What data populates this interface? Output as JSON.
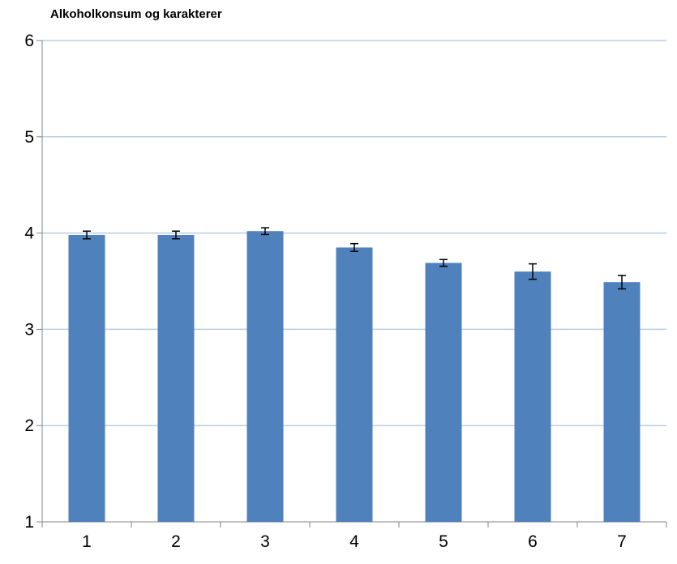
{
  "chart_data": {
    "type": "bar",
    "title": "Alkoholkonsum og karakterer",
    "xlabel": "",
    "ylabel": "",
    "categories": [
      "1",
      "2",
      "3",
      "4",
      "5",
      "6",
      "7"
    ],
    "values": [
      3.98,
      3.98,
      4.02,
      3.85,
      3.69,
      3.6,
      3.49
    ],
    "error": [
      0.04,
      0.04,
      0.035,
      0.04,
      0.035,
      0.08,
      0.07
    ],
    "ylim": [
      1,
      6
    ],
    "yticks": [
      1,
      2,
      3,
      4,
      5,
      6
    ],
    "grid": true,
    "legend": "none",
    "colors": {
      "bar": "#4F81BD",
      "grid": "#B9CDE5",
      "axis": "#868686",
      "error_bar": "#000000"
    }
  }
}
